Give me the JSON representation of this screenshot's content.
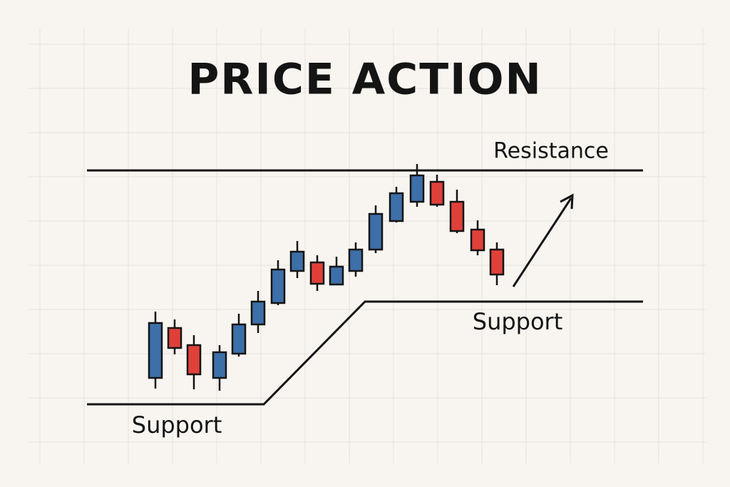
{
  "title": "PRICE ACTION",
  "labels": {
    "resistance": "Resistance",
    "support_upper": "Support",
    "support_lower": "Support"
  }
}
